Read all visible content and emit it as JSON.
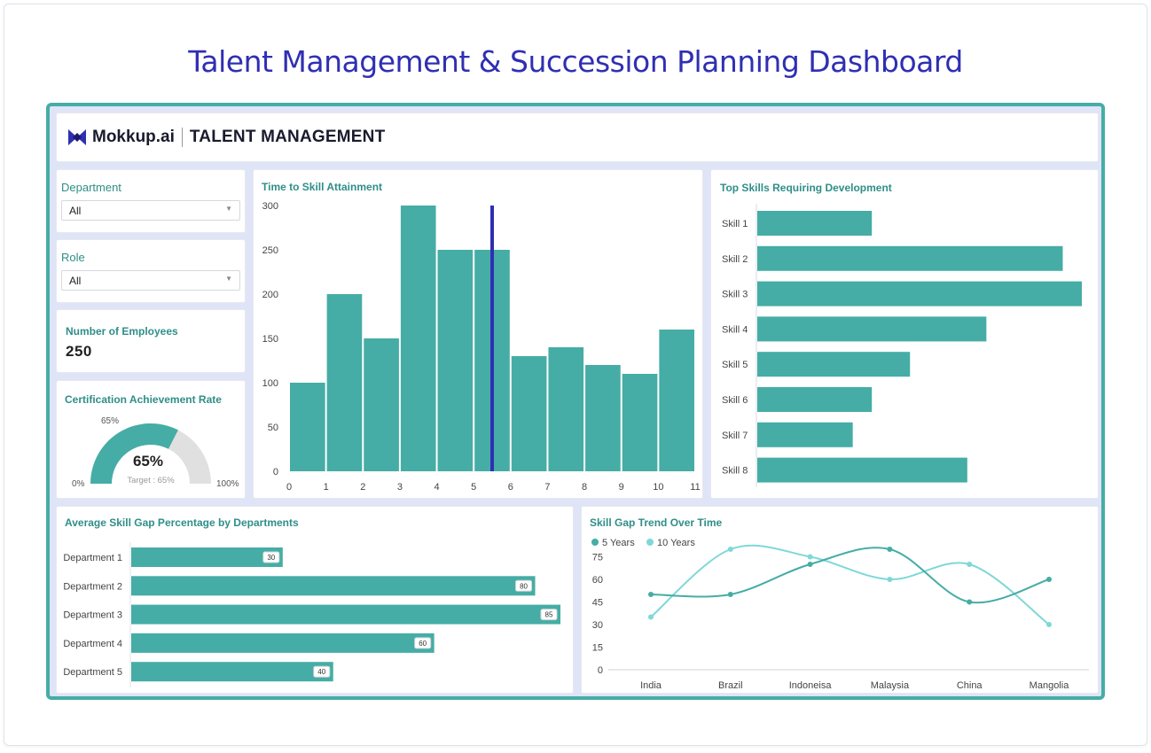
{
  "page_title": "Talent Management & Succession Planning Dashboard",
  "header": {
    "logo_text": "Mokkup.ai",
    "title": "TALENT MANAGEMENT"
  },
  "filters": {
    "department": {
      "label": "Department",
      "value": "All"
    },
    "role": {
      "label": "Role",
      "value": "All"
    }
  },
  "kpi": {
    "label": "Number of Employees",
    "value": "250"
  },
  "colors": {
    "teal": "#45ada5",
    "light_teal": "#7fd8d8",
    "marker": "#2f2fb3",
    "title": "#2f2fb3"
  },
  "gauge": {
    "title": "Certification Achievement Rate",
    "value": 65,
    "value_label": "65%",
    "top_label": "65%",
    "target_label": "Target : 65%",
    "min_label": "0%",
    "max_label": "100%"
  },
  "chart_data": [
    {
      "id": "histogram",
      "type": "bar",
      "title": "Time to Skill Attainment",
      "bin_edges": [
        0,
        1,
        2,
        3,
        4,
        5,
        6,
        7,
        8,
        9,
        10,
        11
      ],
      "values": [
        100,
        200,
        150,
        300,
        250,
        250,
        130,
        140,
        120,
        110,
        160
      ],
      "x_ticks": [
        "0",
        "1",
        "2",
        "3",
        "4",
        "5",
        "6",
        "7",
        "8",
        "9",
        "10",
        "11"
      ],
      "y_ticks": [
        "0",
        "50",
        "100",
        "150",
        "200",
        "250",
        "300"
      ],
      "ylim": [
        0,
        300
      ],
      "xlim": [
        0,
        11
      ],
      "marker_x": 5.5
    },
    {
      "id": "top-skills",
      "type": "bar",
      "orientation": "horizontal",
      "title": "Top Skills Requiring Development",
      "categories": [
        "Skill 1",
        "Skill 2",
        "Skill 3",
        "Skill 4",
        "Skill 5",
        "Skill 6",
        "Skill 7",
        "Skill 8"
      ],
      "values": [
        30,
        80,
        85,
        60,
        40,
        30,
        25,
        55
      ],
      "xlim": [
        0,
        85
      ]
    },
    {
      "id": "dept-gap",
      "type": "bar",
      "orientation": "horizontal",
      "title": "Average Skill Gap Percentage by Departments",
      "categories": [
        "Department 1",
        "Department 2",
        "Department 3",
        "Department 4",
        "Department 5"
      ],
      "values": [
        30,
        80,
        85,
        60,
        40
      ],
      "data_labels": [
        "30",
        "80",
        "85",
        "60",
        "40"
      ],
      "xlim": [
        0,
        85
      ]
    },
    {
      "id": "trend",
      "type": "line",
      "title": "Skill Gap Trend Over Time",
      "categories": [
        "India",
        "Brazil",
        "Indoneisa",
        "Malaysia",
        "China",
        "Mangolia"
      ],
      "y_ticks": [
        "0",
        "15",
        "30",
        "45",
        "60",
        "75"
      ],
      "ylim": [
        0,
        80
      ],
      "series": [
        {
          "name": "5 Years",
          "color": "#45ada5",
          "values": [
            50,
            50,
            70,
            80,
            45,
            60
          ]
        },
        {
          "name": "10 Years",
          "color": "#7fd8d8",
          "values": [
            35,
            80,
            75,
            60,
            70,
            30
          ]
        }
      ]
    }
  ]
}
